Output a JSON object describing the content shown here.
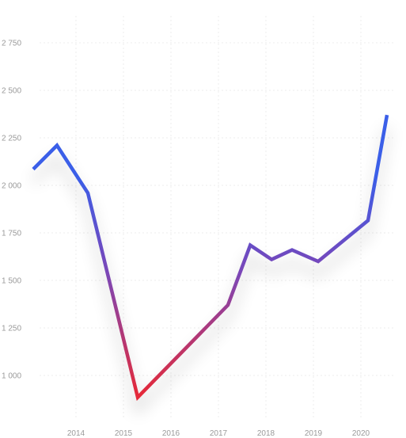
{
  "chart_data": {
    "type": "line",
    "title": "",
    "xlabel": "",
    "ylabel": "",
    "x_ticks": [
      "2014",
      "2015",
      "2016",
      "2017",
      "2018",
      "2019",
      "2020"
    ],
    "y_ticks": [
      {
        "value": 1000,
        "label": "1 000"
      },
      {
        "value": 1250,
        "label": "1 250"
      },
      {
        "value": 1500,
        "label": "1 500"
      },
      {
        "value": 1750,
        "label": "1 750"
      },
      {
        "value": 2000,
        "label": "2 000"
      },
      {
        "value": 2250,
        "label": "2 250"
      },
      {
        "value": 2500,
        "label": "2 500"
      },
      {
        "value": 2750,
        "label": "2 750"
      }
    ],
    "xlim": [
      2013.0,
      2020.8
    ],
    "ylim": [
      800,
      2850
    ],
    "grid": true,
    "legend": "none",
    "series": [
      {
        "x": [
          2013.1,
          2013.6,
          2014.25,
          2015.3,
          2017.2,
          2017.67,
          2018.12,
          2018.55,
          2019.1,
          2020.15,
          2020.55
        ],
        "y": [
          2085,
          2210,
          1960,
          885,
          1370,
          1685,
          1610,
          1660,
          1600,
          1815,
          2370
        ],
        "color_high": "#3a5ee8",
        "color_mid": "#7a47b8",
        "color_low": "#e42a3a"
      }
    ]
  }
}
